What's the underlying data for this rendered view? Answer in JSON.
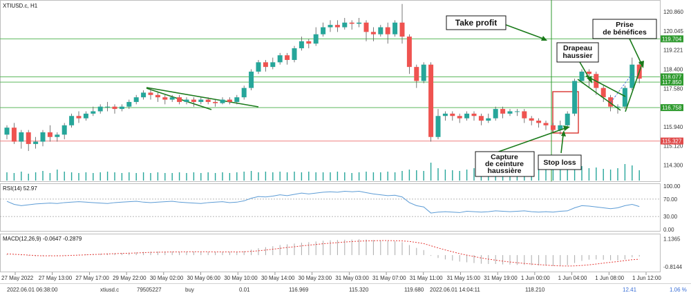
{
  "chart_title": "XTIUSD.c, H1",
  "price_axis": {
    "ticks": [
      "120.860",
      "120.045",
      "119.221",
      "118.400",
      "117.580",
      "116.760",
      "115.940",
      "115.120",
      "114.300"
    ],
    "range": [
      113.75,
      121.25
    ]
  },
  "price_tags": [
    {
      "label": "119.704",
      "value": 119.704,
      "color": "#2e9a2e"
    },
    {
      "label": "118.077",
      "value": 118.077,
      "color": "#2e9a2e"
    },
    {
      "label": "117.850",
      "value": 117.85,
      "color": "#2e9a2e"
    },
    {
      "label": "116.758",
      "value": 116.758,
      "color": "#2e9a2e"
    },
    {
      "label": "115.327",
      "value": 115.327,
      "color": "#e04a4a"
    }
  ],
  "hlines": [
    {
      "value": 119.704,
      "color": "#5cb85c"
    },
    {
      "value": 118.077,
      "color": "#5cb85c"
    },
    {
      "value": 117.85,
      "color": "#5cb85c"
    },
    {
      "value": 116.758,
      "color": "#5cb85c"
    },
    {
      "value": 115.327,
      "color": "#f08080"
    }
  ],
  "chart_data": {
    "type": "candlestick",
    "symbol": "XTIUSD.c",
    "timeframe": "H1",
    "candles": [
      [
        115.6,
        115.9,
        115.4,
        116.0
      ],
      [
        115.9,
        115.3,
        115.2,
        116.1
      ],
      [
        115.3,
        115.7,
        115.0,
        115.8
      ],
      [
        115.7,
        115.2,
        114.9,
        115.8
      ],
      [
        115.2,
        115.3,
        115.0,
        115.5
      ],
      [
        115.3,
        115.7,
        115.1,
        115.8
      ],
      [
        115.7,
        115.5,
        115.3,
        116.0
      ],
      [
        115.5,
        115.6,
        115.3,
        115.7
      ],
      [
        115.6,
        116.0,
        115.4,
        116.1
      ],
      [
        116.0,
        116.4,
        115.9,
        116.5
      ],
      [
        116.4,
        116.3,
        116.1,
        116.6
      ],
      [
        116.3,
        116.5,
        116.2,
        116.6
      ],
      [
        116.5,
        116.6,
        116.4,
        116.8
      ],
      [
        116.6,
        116.8,
        116.5,
        116.9
      ],
      [
        116.8,
        116.8,
        116.6,
        117.0
      ],
      [
        116.8,
        116.7,
        116.5,
        116.9
      ],
      [
        116.7,
        116.8,
        116.6,
        116.9
      ],
      [
        116.8,
        117.0,
        116.7,
        117.1
      ],
      [
        117.0,
        117.2,
        116.9,
        117.3
      ],
      [
        117.2,
        117.4,
        117.1,
        117.5
      ],
      [
        117.4,
        117.3,
        117.1,
        117.6
      ],
      [
        117.3,
        117.2,
        117.0,
        117.4
      ],
      [
        117.2,
        117.1,
        116.9,
        117.3
      ],
      [
        117.1,
        117.2,
        117.0,
        117.3
      ],
      [
        117.2,
        117.0,
        116.9,
        117.3
      ],
      [
        117.0,
        117.1,
        116.9,
        117.2
      ],
      [
        117.1,
        117.0,
        116.8,
        117.2
      ],
      [
        117.0,
        117.1,
        116.9,
        117.2
      ],
      [
        117.1,
        117.0,
        116.9,
        117.2
      ],
      [
        117.0,
        116.95,
        116.8,
        117.1
      ],
      [
        116.95,
        117.1,
        116.9,
        117.2
      ],
      [
        117.1,
        117.0,
        116.9,
        117.2
      ],
      [
        117.0,
        117.2,
        116.9,
        117.3
      ],
      [
        117.2,
        117.6,
        117.1,
        117.7
      ],
      [
        117.6,
        118.3,
        117.5,
        118.4
      ],
      [
        118.3,
        118.7,
        118.2,
        118.8
      ],
      [
        118.7,
        118.5,
        118.3,
        118.8
      ],
      [
        118.5,
        118.7,
        118.4,
        118.9
      ],
      [
        118.7,
        119.0,
        118.6,
        119.1
      ],
      [
        119.0,
        118.8,
        118.6,
        119.1
      ],
      [
        118.8,
        119.3,
        118.7,
        119.4
      ],
      [
        119.3,
        119.6,
        119.2,
        119.8
      ],
      [
        119.6,
        119.5,
        119.3,
        119.7
      ],
      [
        119.5,
        119.9,
        119.4,
        120.2
      ],
      [
        119.9,
        120.2,
        119.8,
        120.4
      ],
      [
        120.2,
        120.3,
        120.0,
        120.5
      ],
      [
        120.3,
        120.2,
        120.0,
        120.5
      ],
      [
        120.2,
        120.4,
        120.1,
        120.6
      ],
      [
        120.4,
        120.35,
        120.1,
        120.5
      ],
      [
        120.35,
        120.4,
        120.2,
        120.6
      ],
      [
        120.4,
        120.0,
        119.6,
        120.5
      ],
      [
        120.0,
        119.9,
        119.6,
        120.2
      ],
      [
        119.9,
        120.2,
        119.8,
        120.3
      ],
      [
        120.2,
        119.9,
        119.5,
        120.4
      ],
      [
        119.9,
        120.4,
        119.8,
        120.5
      ],
      [
        120.4,
        119.8,
        119.5,
        121.2
      ],
      [
        119.8,
        118.5,
        118.2,
        119.9
      ],
      [
        118.5,
        117.9,
        117.6,
        118.6
      ],
      [
        117.9,
        118.6,
        117.8,
        118.7
      ],
      [
        118.6,
        115.5,
        115.3,
        118.7
      ],
      [
        115.5,
        116.4,
        115.4,
        116.7
      ],
      [
        116.4,
        116.5,
        116.2,
        116.6
      ],
      [
        116.5,
        116.4,
        116.2,
        116.6
      ],
      [
        116.4,
        116.3,
        116.1,
        116.5
      ],
      [
        116.3,
        116.5,
        116.2,
        116.6
      ],
      [
        116.5,
        116.4,
        116.2,
        116.6
      ],
      [
        116.4,
        116.2,
        116.0,
        116.5
      ],
      [
        116.2,
        116.3,
        116.1,
        116.5
      ],
      [
        116.3,
        116.7,
        116.2,
        116.8
      ],
      [
        116.7,
        116.5,
        116.3,
        116.8
      ],
      [
        116.5,
        116.6,
        116.4,
        116.7
      ],
      [
        116.6,
        116.6,
        116.4,
        116.7
      ],
      [
        116.6,
        116.3,
        116.1,
        116.7
      ],
      [
        116.3,
        116.2,
        116.0,
        116.4
      ],
      [
        116.2,
        116.1,
        115.9,
        116.3
      ],
      [
        116.1,
        116.0,
        115.8,
        116.2
      ],
      [
        116.0,
        115.8,
        115.7,
        116.1
      ],
      [
        115.8,
        116.0,
        115.6,
        116.2
      ],
      [
        116.0,
        116.5,
        115.9,
        116.6
      ],
      [
        116.5,
        117.9,
        116.4,
        118.0
      ],
      [
        117.9,
        118.3,
        117.8,
        118.4
      ],
      [
        118.3,
        118.2,
        117.6,
        118.4
      ],
      [
        118.2,
        117.6,
        117.3,
        118.3
      ],
      [
        117.6,
        117.2,
        117.0,
        117.7
      ],
      [
        117.2,
        116.8,
        116.6,
        117.3
      ],
      [
        116.8,
        116.8,
        116.5,
        116.9
      ],
      [
        116.8,
        117.6,
        116.7,
        117.7
      ],
      [
        117.6,
        118.6,
        117.5,
        118.9
      ],
      [
        118.6,
        118.0,
        117.8,
        118.7
      ]
    ],
    "volumes": [
      12,
      11,
      13,
      10,
      12,
      14,
      11,
      16,
      13,
      12,
      11,
      12,
      11,
      12,
      13,
      12,
      11,
      12,
      11,
      12,
      11,
      12,
      11,
      11,
      12,
      11,
      12,
      11,
      12,
      11,
      12,
      11,
      12,
      13,
      14,
      12,
      13,
      12,
      13,
      12,
      13,
      12,
      13,
      12,
      12,
      12,
      13,
      12,
      11,
      12,
      13,
      12,
      12,
      13,
      12,
      14,
      16,
      15,
      14,
      26,
      18,
      16,
      15,
      14,
      16,
      18,
      17,
      15,
      17,
      18,
      17,
      19,
      20,
      21,
      22,
      20,
      21,
      24,
      22,
      25,
      21,
      18,
      19,
      17,
      16,
      18,
      24,
      22,
      15
    ],
    "rsi": {
      "label": "RSI(14) 52.97",
      "ticks": [
        "100.00",
        "70.00",
        "30.00",
        "0.00"
      ],
      "levels": [
        70,
        30
      ],
      "values": [
        65,
        58,
        55,
        57,
        59,
        60,
        61,
        60,
        62,
        63,
        64,
        63,
        62,
        61,
        60,
        62,
        63,
        64,
        65,
        63,
        62,
        63,
        64,
        65,
        63,
        62,
        61,
        60,
        62,
        63,
        64,
        62,
        63,
        66,
        72,
        76,
        75,
        77,
        80,
        78,
        81,
        84,
        82,
        84,
        86,
        87,
        86,
        88,
        87,
        88,
        85,
        82,
        80,
        78,
        79,
        75,
        62,
        55,
        52,
        38,
        40,
        41,
        40,
        39,
        42,
        41,
        40,
        41,
        43,
        42,
        41,
        42,
        43,
        41,
        40,
        41,
        40,
        42,
        43,
        50,
        55,
        54,
        52,
        50,
        48,
        50,
        55,
        58,
        53
      ]
    },
    "macd": {
      "label": "MACD(12,26,9) -0.0647 -0.2879",
      "ticks": [
        "1.1365",
        "-0.8144"
      ],
      "range": [
        -1.05,
        1.3
      ],
      "histogram": [
        0.05,
        0.02,
        -0.02,
        -0.05,
        -0.08,
        -0.06,
        -0.04,
        -0.05,
        -0.03,
        0.0,
        0.03,
        0.05,
        0.08,
        0.1,
        0.12,
        0.14,
        0.15,
        0.17,
        0.19,
        0.22,
        0.24,
        0.25,
        0.26,
        0.25,
        0.24,
        0.25,
        0.24,
        0.23,
        0.22,
        0.22,
        0.21,
        0.22,
        0.23,
        0.28,
        0.38,
        0.48,
        0.55,
        0.62,
        0.7,
        0.75,
        0.8,
        0.86,
        0.9,
        0.95,
        1.0,
        1.03,
        1.05,
        1.07,
        1.08,
        1.1,
        1.09,
        1.05,
        1.02,
        0.98,
        0.96,
        0.9,
        0.7,
        0.5,
        0.35,
        -0.05,
        -0.2,
        -0.3,
        -0.38,
        -0.45,
        -0.5,
        -0.55,
        -0.6,
        -0.62,
        -0.62,
        -0.65,
        -0.66,
        -0.68,
        -0.68,
        -0.7,
        -0.72,
        -0.74,
        -0.76,
        -0.74,
        -0.7,
        -0.55,
        -0.4,
        -0.32,
        -0.3,
        -0.32,
        -0.36,
        -0.38,
        -0.3,
        -0.15,
        -0.1
      ],
      "signal": [
        0.08,
        0.06,
        0.03,
        0.0,
        -0.03,
        -0.05,
        -0.05,
        -0.05,
        -0.04,
        -0.02,
        0.0,
        0.02,
        0.04,
        0.06,
        0.08,
        0.1,
        0.12,
        0.13,
        0.15,
        0.17,
        0.19,
        0.2,
        0.21,
        0.22,
        0.22,
        0.23,
        0.23,
        0.23,
        0.23,
        0.22,
        0.22,
        0.22,
        0.22,
        0.23,
        0.26,
        0.3,
        0.35,
        0.41,
        0.47,
        0.53,
        0.58,
        0.64,
        0.69,
        0.74,
        0.79,
        0.83,
        0.87,
        0.91,
        0.94,
        0.97,
        0.99,
        1.0,
        1.01,
        1.01,
        1.0,
        0.99,
        0.95,
        0.88,
        0.8,
        0.65,
        0.5,
        0.36,
        0.23,
        0.1,
        0.0,
        -0.1,
        -0.2,
        -0.28,
        -0.35,
        -0.42,
        -0.48,
        -0.53,
        -0.58,
        -0.62,
        -0.66,
        -0.7,
        -0.73,
        -0.75,
        -0.76,
        -0.75,
        -0.72,
        -0.68,
        -0.62,
        -0.56,
        -0.5,
        -0.45,
        -0.38,
        -0.32,
        -0.29
      ]
    },
    "time_labels": [
      "27 May 2022",
      "27 May 13:00",
      "27 May 17:00",
      "29 May 22:00",
      "30 May 02:00",
      "30 May 06:00",
      "30 May 10:00",
      "30 May 14:00",
      "30 May 23:00",
      "31 May 03:00",
      "31 May 07:00",
      "31 May 11:00",
      "31 May 15:00",
      "31 May 19:00",
      "1 Jun 00:00",
      "1 Jun 04:00",
      "1 Jun 08:00",
      "1 Jun 12:00"
    ]
  },
  "annotations": {
    "take_profit": "Take profit",
    "prise": [
      "Prise",
      "de bénéfices"
    ],
    "drapeau": [
      "Drapeau",
      "haussier"
    ],
    "capture": [
      "Capture",
      "de ceinture",
      "haussière"
    ],
    "stop_loss": "Stop loss"
  },
  "status_bar": {
    "open_time": "2022.06.01 06:38:00",
    "symbol": "xtiusd.c",
    "ticket": "79505227",
    "type": "buy",
    "volume": "0.01",
    "open_price": "116.969",
    "sl": "115.320",
    "tp": "119.680",
    "close_time": "2022.06.01 14:04:11",
    "close_price": "118.210",
    "profit": "12.41",
    "percent": "1.06 %"
  },
  "colors": {
    "bull": "#26a69a",
    "bear": "#ef5350",
    "volume": "#26a69a",
    "rsi": "#5b9bd5",
    "macd_hist": "#aaaaaa",
    "macd_signal": "#e53935",
    "green_line": "#5cb85c",
    "red_line": "#f08080",
    "arrow": "#1a7a1a"
  }
}
